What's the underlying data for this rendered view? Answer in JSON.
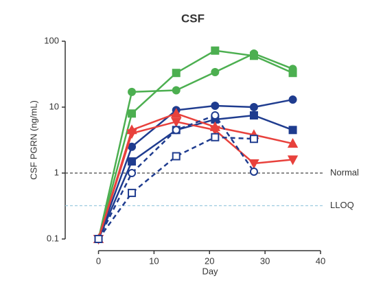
{
  "chart_data": {
    "type": "line",
    "title": "CSF",
    "x_label": "Day",
    "y_label": "CSF PGRN (ng/mL)",
    "log_y": true,
    "x": [
      0,
      6,
      14,
      21,
      28,
      35
    ],
    "xlim": [
      -6,
      40
    ],
    "xticks": [
      0,
      10,
      20,
      30,
      40
    ],
    "ylim": [
      0.1,
      100
    ],
    "yticks": [
      0.1,
      1,
      10,
      100
    ],
    "reference_lines": [
      {
        "value": 1,
        "label": "Normal",
        "color": "#444444"
      },
      {
        "value": 0.32,
        "label": "LLOQ",
        "color": "#9ccbe0"
      }
    ],
    "series": [
      {
        "color": "#4caf50",
        "marker": "square",
        "filled": true,
        "dashed": false,
        "values": [
          0.1,
          8,
          33,
          72,
          60,
          33
        ]
      },
      {
        "color": "#4caf50",
        "marker": "circle",
        "filled": true,
        "dashed": false,
        "values": [
          0.1,
          17,
          18,
          34,
          65,
          38
        ]
      },
      {
        "color": "#1f3c8f",
        "marker": "circle",
        "filled": true,
        "dashed": false,
        "values": [
          0.1,
          2.5,
          9,
          10.5,
          10,
          13
        ]
      },
      {
        "color": "#1f3c8f",
        "marker": "square",
        "filled": true,
        "dashed": false,
        "values": [
          0.1,
          1.5,
          4.5,
          6.5,
          7.5,
          4.5
        ]
      },
      {
        "color": "#e8413c",
        "marker": "triangle-up",
        "filled": true,
        "dashed": false,
        "values": [
          0.1,
          4.5,
          8,
          5,
          3.8,
          2.8
        ]
      },
      {
        "color": "#e8413c",
        "marker": "triangle-down",
        "filled": true,
        "dashed": false,
        "values": [
          0.1,
          4,
          6,
          4.5,
          1.4,
          1.6
        ]
      },
      {
        "color": "#1f3c8f",
        "marker": "circle",
        "filled": false,
        "dashed": true,
        "values": [
          0.1,
          1,
          4.5,
          7.5,
          1.05,
          null
        ]
      },
      {
        "color": "#1f3c8f",
        "marker": "square",
        "filled": false,
        "dashed": true,
        "values": [
          0.1,
          0.5,
          1.8,
          3.5,
          3.3,
          null
        ]
      }
    ]
  }
}
